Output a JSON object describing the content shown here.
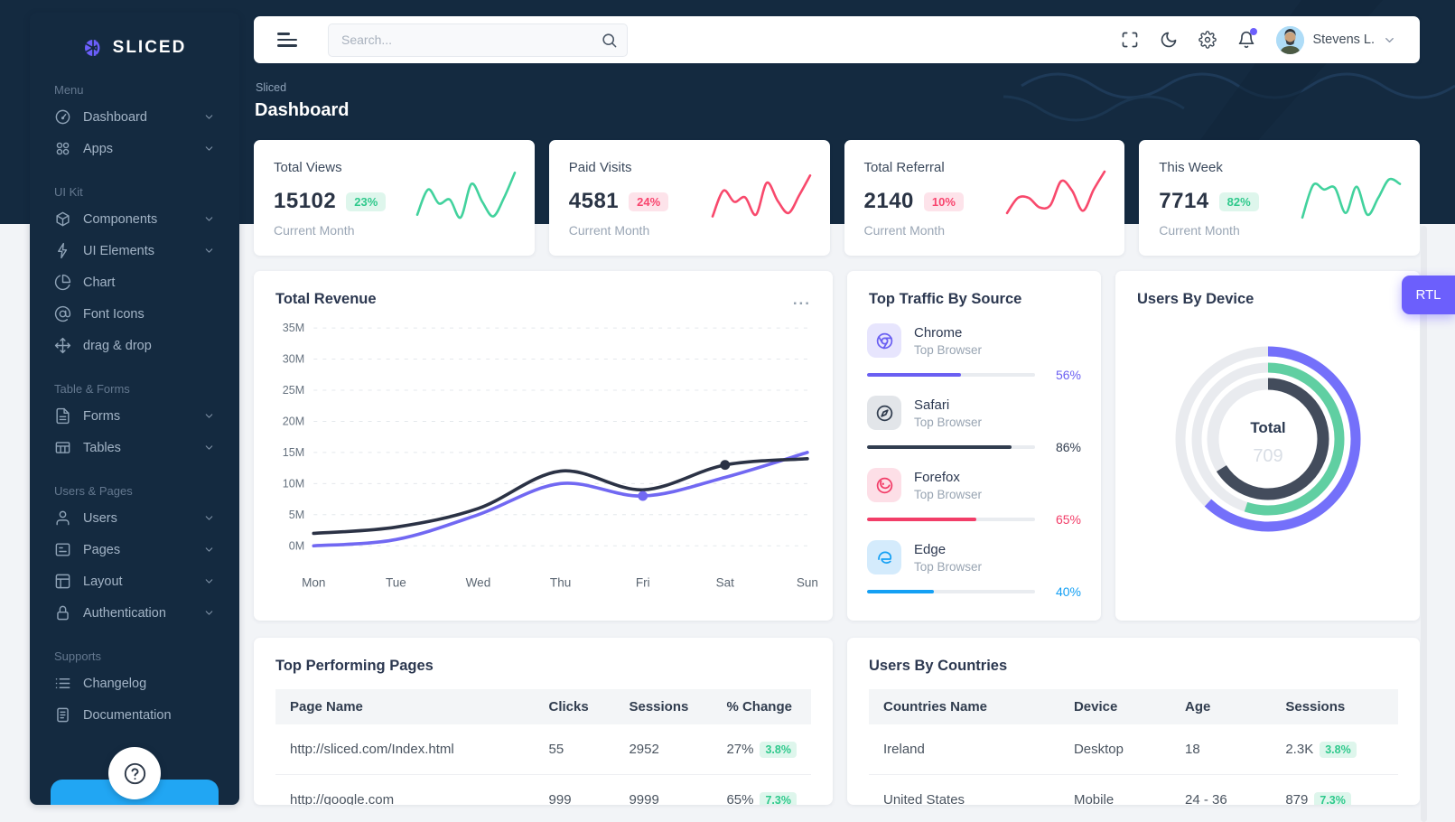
{
  "brand": {
    "name": "SLICED"
  },
  "sidebar": {
    "sections": [
      {
        "label": "Menu",
        "items": [
          {
            "label": "Dashboard",
            "icon": "speedometer-icon",
            "chevron": true
          },
          {
            "label": "Apps",
            "icon": "apps-grid-icon",
            "chevron": true
          }
        ]
      },
      {
        "label": "UI Kit",
        "items": [
          {
            "label": "Components",
            "icon": "box-icon",
            "chevron": true
          },
          {
            "label": "UI Elements",
            "icon": "bolt-icon",
            "chevron": true
          },
          {
            "label": "Chart",
            "icon": "pie-chart-icon",
            "chevron": false
          },
          {
            "label": "Font Icons",
            "icon": "at-sign-icon",
            "chevron": false
          },
          {
            "label": "drag & drop",
            "icon": "move-icon",
            "chevron": false
          }
        ]
      },
      {
        "label": "Table & Forms",
        "items": [
          {
            "label": "Forms",
            "icon": "file-text-icon",
            "chevron": true
          },
          {
            "label": "Tables",
            "icon": "table-icon",
            "chevron": true
          }
        ]
      },
      {
        "label": "Users & Pages",
        "items": [
          {
            "label": "Users",
            "icon": "user-icon",
            "chevron": true
          },
          {
            "label": "Pages",
            "icon": "pages-icon",
            "chevron": true
          },
          {
            "label": "Layout",
            "icon": "layout-icon",
            "chevron": true
          },
          {
            "label": "Authentication",
            "icon": "lock-icon",
            "chevron": true
          }
        ]
      },
      {
        "label": "Supports",
        "items": [
          {
            "label": "Changelog",
            "icon": "list-icon",
            "chevron": false
          },
          {
            "label": "Documentation",
            "icon": "document-icon",
            "chevron": false
          }
        ]
      }
    ]
  },
  "header": {
    "search_placeholder": "Search...",
    "user_name": "Stevens L."
  },
  "breadcrumb": "Sliced",
  "page_title": "Dashboard",
  "stat_cards": [
    {
      "title": "Total Views",
      "value": "15102",
      "badge": "23%",
      "badge_type": "success",
      "caption": "Current Month"
    },
    {
      "title": "Paid Visits",
      "value": "4581",
      "badge": "24%",
      "badge_type": "danger",
      "caption": "Current Month"
    },
    {
      "title": "Total Referral",
      "value": "2140",
      "badge": "10%",
      "badge_type": "danger",
      "caption": "Current Month"
    },
    {
      "title": "This Week",
      "value": "7714",
      "badge": "82%",
      "badge_type": "success",
      "caption": "Current Month"
    }
  ],
  "chart_data": [
    {
      "id": "revenue",
      "type": "line",
      "title": "Total Revenue",
      "x": [
        "Mon",
        "Tue",
        "Wed",
        "Thu",
        "Fri",
        "Sat",
        "Sun"
      ],
      "ylim": [
        0,
        35
      ],
      "ytick_step": 5,
      "ytick_suffix": "M",
      "grid": true,
      "series": [
        {
          "name": "revenue-dark",
          "color": "#2b3245",
          "values": [
            2,
            3,
            6,
            12,
            9,
            13,
            14
          ],
          "marker_index": 5
        },
        {
          "name": "revenue-purple",
          "color": "#7168f2",
          "values": [
            0,
            1,
            5,
            10,
            8,
            11,
            15
          ],
          "marker_index": 4
        }
      ]
    },
    {
      "id": "traffic",
      "type": "bar",
      "title": "Top Traffic By Source",
      "rows": [
        {
          "name": "Chrome",
          "sub": "Top Browser",
          "percent": 56,
          "color": "#6a5ff2",
          "tile_bg": "#e7e5fd",
          "icon": "chrome-icon"
        },
        {
          "name": "Safari",
          "sub": "Top Browser",
          "percent": 86,
          "color": "#313d4f",
          "tile_bg": "#e2e5e9",
          "icon": "safari-icon"
        },
        {
          "name": "Forefox",
          "sub": "Top Browser",
          "percent": 65,
          "color": "#f23d68",
          "tile_bg": "#fddfe7",
          "icon": "firefox-icon"
        },
        {
          "name": "Edge",
          "sub": "Top Browser",
          "percent": 40,
          "color": "#14a0f4",
          "tile_bg": "#d4ebfc",
          "icon": "edge-icon"
        }
      ]
    },
    {
      "id": "devices",
      "type": "donut",
      "title": "Users By Device",
      "center_label": "Total",
      "center_value": "709",
      "track_color": "#e9ebef",
      "series": [
        {
          "ring": "outer",
          "percent": 62,
          "color": "#7470fa"
        },
        {
          "ring": "middle",
          "percent": 55,
          "color": "#60cfa2"
        },
        {
          "ring": "inner",
          "percent": 66,
          "color": "#434c5c"
        }
      ]
    },
    {
      "id": "sparklines",
      "type": "line",
      "series": [
        {
          "name": "total-views-spark",
          "color": "#42d29d",
          "values": [
            15,
            60,
            35,
            42,
            10,
            70,
            38,
            12,
            45,
            90
          ]
        },
        {
          "name": "paid-visits-spark",
          "color": "#f8496c",
          "values": [
            12,
            58,
            38,
            46,
            15,
            72,
            40,
            18,
            50,
            85
          ]
        },
        {
          "name": "total-referral-spark",
          "color": "#f8496c",
          "values": [
            18,
            45,
            45,
            28,
            32,
            75,
            58,
            22,
            60,
            92
          ]
        },
        {
          "name": "this-week-spark",
          "color": "#42d29d",
          "values": [
            10,
            68,
            60,
            63,
            18,
            65,
            15,
            45,
            78,
            70
          ]
        }
      ]
    }
  ],
  "tables": {
    "pages": {
      "title": "Top Performing Pages",
      "headers": [
        "Page Name",
        "Clicks",
        "Sessions",
        "% Change"
      ],
      "rows": [
        {
          "cells": [
            "http://sliced.com/Index.html",
            "55",
            "2952",
            "27%"
          ],
          "badge": "3.8%"
        },
        {
          "cells": [
            "http://google.com",
            "999",
            "9999",
            "65%"
          ],
          "badge": "7.3%"
        }
      ]
    },
    "countries": {
      "title": "Users By Countries",
      "headers": [
        "Countries Name",
        "Device",
        "Age",
        "Sessions"
      ],
      "rows": [
        {
          "cells": [
            "Ireland",
            "Desktop",
            "18",
            "2.3K"
          ],
          "badge": "3.8%"
        },
        {
          "cells": [
            "United States",
            "Mobile",
            "24 - 36",
            "879"
          ],
          "badge": "7.3%"
        }
      ]
    }
  },
  "rtl_label": "RTL"
}
